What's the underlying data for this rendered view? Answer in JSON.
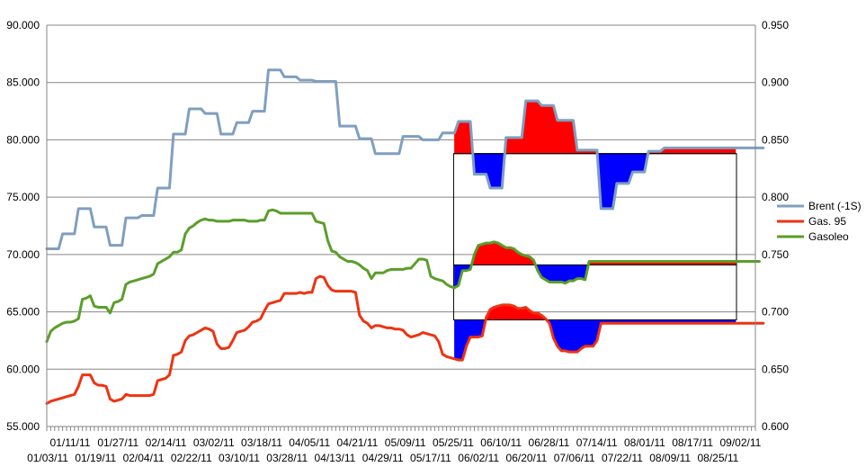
{
  "chart_data": {
    "type": "line",
    "title": "",
    "left_axis": {
      "ylim": [
        55.0,
        90.0
      ],
      "ticks": [
        "90.000",
        "85.000",
        "80.000",
        "75.000",
        "70.000",
        "65.000",
        "60.000",
        "55.000"
      ]
    },
    "right_axis": {
      "ylim": [
        0.6,
        0.95
      ],
      "ticks": [
        "0.950",
        "0.900",
        "0.850",
        "0.800",
        "0.750",
        "0.700",
        "0.650",
        "0.600"
      ]
    },
    "x_ticks_row1": [
      "01/11/11",
      "01/27/11",
      "02/14/11",
      "03/02/11",
      "03/18/11",
      "04/05/11",
      "04/21/11",
      "05/09/11",
      "05/25/11",
      "06/10/11",
      "06/28/11",
      "07/14/11",
      "08/01/11",
      "08/17/11",
      "09/02/11"
    ],
    "x_ticks_row2": [
      "01/03/11",
      "01/19/11",
      "02/04/11",
      "02/22/11",
      "03/10/11",
      "03/28/11",
      "04/13/11",
      "04/29/11",
      "05/17/11",
      "06/02/11",
      "06/20/11",
      "07/06/11",
      "07/22/11",
      "08/09/11",
      "08/25/11"
    ],
    "n_points": 180,
    "highlight_start_index": 103,
    "highlight_end_index": 174,
    "series": [
      {
        "name": "Brent (-1S)",
        "axis": "left",
        "color": "#7f9fbf",
        "values": [
          70.5,
          70.5,
          70.5,
          70.5,
          71.8,
          71.8,
          71.8,
          71.8,
          74.0,
          74.0,
          74.0,
          74.0,
          72.4,
          72.4,
          72.4,
          72.4,
          70.8,
          70.8,
          70.8,
          70.8,
          73.2,
          73.2,
          73.2,
          73.2,
          73.4,
          73.4,
          73.4,
          73.4,
          75.8,
          75.8,
          75.8,
          75.8,
          80.5,
          80.5,
          80.5,
          80.5,
          82.7,
          82.7,
          82.7,
          82.7,
          82.3,
          82.3,
          82.3,
          82.3,
          80.5,
          80.5,
          80.5,
          80.5,
          81.5,
          81.5,
          81.5,
          81.5,
          82.5,
          82.5,
          82.5,
          82.5,
          86.1,
          86.1,
          86.1,
          86.1,
          85.5,
          85.5,
          85.5,
          85.5,
          85.2,
          85.2,
          85.2,
          85.2,
          85.1,
          85.1,
          85.1,
          85.1,
          85.1,
          85.1,
          81.2,
          81.2,
          81.2,
          81.2,
          81.2,
          80.1,
          80.1,
          80.1,
          80.1,
          78.8,
          78.8,
          78.8,
          78.8,
          78.8,
          78.8,
          78.8,
          80.3,
          80.3,
          80.3,
          80.3,
          80.3,
          80.0,
          80.0,
          80.0,
          80.0,
          80.0,
          80.6,
          80.6,
          80.6,
          80.6,
          81.6,
          81.6,
          81.6,
          81.6,
          77.0,
          77.0,
          77.0,
          77.0,
          75.8,
          75.8,
          75.8,
          75.8,
          80.2,
          80.2,
          80.2,
          80.2,
          80.2,
          83.4,
          83.4,
          83.4,
          83.4,
          83.0,
          83.0,
          83.0,
          83.0,
          81.7,
          81.7,
          81.7,
          81.7,
          81.7,
          79.1,
          79.1,
          79.1,
          79.1,
          79.1,
          79.1,
          74.0,
          74.0,
          74.0,
          74.0,
          76.2,
          76.2,
          76.2,
          76.2,
          77.2,
          77.2,
          77.2,
          77.2,
          79.0,
          79.0,
          79.0,
          79.0,
          79.3,
          79.3,
          79.3,
          79.3,
          79.3,
          79.3,
          79.3,
          79.3,
          79.3,
          79.3,
          79.3,
          79.3,
          79.3,
          79.3,
          79.3,
          79.3,
          79.3,
          79.3,
          79.3,
          79.3,
          79.3,
          79.3,
          79.3,
          79.3,
          79.3,
          79.3
        ]
      },
      {
        "name": "Gas. 95",
        "axis": "left",
        "color": "#ee3311",
        "values": [
          57.0,
          57.2,
          57.3,
          57.4,
          57.5,
          57.6,
          57.7,
          57.8,
          58.5,
          59.5,
          59.5,
          59.5,
          58.8,
          58.6,
          58.6,
          58.5,
          57.4,
          57.2,
          57.3,
          57.4,
          57.8,
          57.7,
          57.7,
          57.7,
          57.7,
          57.7,
          57.7,
          57.8,
          59.0,
          59.1,
          59.2,
          59.5,
          61.2,
          61.3,
          61.5,
          62.5,
          62.9,
          63.0,
          63.2,
          63.4,
          63.6,
          63.5,
          63.3,
          62.2,
          61.8,
          61.8,
          61.9,
          62.5,
          63.2,
          63.3,
          63.4,
          63.7,
          64.1,
          64.2,
          64.4,
          65.1,
          65.7,
          65.8,
          65.9,
          66.0,
          66.6,
          66.6,
          66.6,
          66.6,
          66.7,
          66.6,
          66.7,
          66.7,
          67.9,
          68.1,
          68.0,
          67.3,
          66.9,
          66.8,
          66.8,
          66.8,
          66.8,
          66.8,
          66.7,
          64.7,
          64.2,
          64.0,
          63.6,
          63.8,
          63.8,
          63.7,
          63.6,
          63.6,
          63.5,
          63.5,
          63.4,
          63.0,
          62.8,
          62.9,
          63.0,
          63.2,
          63.1,
          63.0,
          62.9,
          62.4,
          61.3,
          61.1,
          61.0,
          60.9,
          60.8,
          60.8,
          62.0,
          62.8,
          62.8,
          62.8,
          62.9,
          64.5,
          65.2,
          65.4,
          65.5,
          65.6,
          65.6,
          65.6,
          65.5,
          65.3,
          65.3,
          65.4,
          65.1,
          64.9,
          64.9,
          64.7,
          64.4,
          64.0,
          62.7,
          62.0,
          61.6,
          61.6,
          61.5,
          61.5,
          61.5,
          61.8,
          62.0,
          62.0,
          62.0,
          62.5,
          64.0,
          64.0,
          64.0,
          64.0,
          64.0,
          64.0,
          64.0,
          64.0,
          64.0,
          64.0,
          64.0,
          64.0,
          64.0,
          64.0,
          64.0,
          64.0,
          64.0,
          64.0,
          64.0,
          64.0,
          64.0,
          64.0,
          64.0,
          64.0,
          64.0,
          64.0,
          64.0,
          64.0,
          64.0,
          64.0,
          64.0,
          64.0,
          64.0,
          64.0,
          64.0,
          64.0,
          64.0,
          64.0,
          64.0,
          64.0,
          64.0,
          64.0
        ]
      },
      {
        "name": "Gasoleo",
        "axis": "left",
        "color": "#5a9e2a",
        "values": [
          62.4,
          63.3,
          63.6,
          63.8,
          64.0,
          64.1,
          64.1,
          64.2,
          64.4,
          66.1,
          66.2,
          66.4,
          65.5,
          65.4,
          65.4,
          65.4,
          64.9,
          65.8,
          65.9,
          66.1,
          67.4,
          67.6,
          67.7,
          67.8,
          67.9,
          68.0,
          68.1,
          68.3,
          69.2,
          69.4,
          69.6,
          69.8,
          70.2,
          70.2,
          70.4,
          71.8,
          72.3,
          72.5,
          72.8,
          73.0,
          73.1,
          73.0,
          73.0,
          72.9,
          72.9,
          72.9,
          72.9,
          73.0,
          73.0,
          73.0,
          73.0,
          72.9,
          72.9,
          72.9,
          73.0,
          73.0,
          73.8,
          73.9,
          73.8,
          73.6,
          73.6,
          73.6,
          73.6,
          73.6,
          73.6,
          73.6,
          73.6,
          73.6,
          72.9,
          72.8,
          72.7,
          71.2,
          70.3,
          70.2,
          69.8,
          69.6,
          69.4,
          69.4,
          69.3,
          69.1,
          68.8,
          68.6,
          67.9,
          68.4,
          68.4,
          68.4,
          68.6,
          68.7,
          68.7,
          68.7,
          68.7,
          68.8,
          68.8,
          69.2,
          69.6,
          69.6,
          69.5,
          68.1,
          67.9,
          67.8,
          67.7,
          67.4,
          67.2,
          67.1,
          67.3,
          68.6,
          68.6,
          68.7,
          70.0,
          70.8,
          70.9,
          71.0,
          71.0,
          71.1,
          71.0,
          70.8,
          70.6,
          70.6,
          70.5,
          70.2,
          70.0,
          69.9,
          69.8,
          69.5,
          68.6,
          68.0,
          67.8,
          67.6,
          67.6,
          67.6,
          67.6,
          67.5,
          67.7,
          67.7,
          67.9,
          67.9,
          67.8,
          69.4,
          69.4,
          69.4,
          69.4,
          69.4,
          69.4,
          69.4,
          69.4,
          69.4,
          69.4,
          69.4,
          69.4,
          69.4,
          69.4,
          69.4,
          69.4,
          69.4,
          69.4,
          69.4,
          69.4,
          69.4,
          69.4,
          69.4,
          69.4,
          69.4,
          69.4,
          69.4,
          69.4,
          69.4,
          69.4,
          69.4,
          69.4,
          69.4,
          69.4,
          69.4,
          69.4,
          69.4,
          69.4,
          69.4,
          69.4,
          69.4,
          69.4,
          69.4,
          69.4
        ]
      }
    ],
    "fill_baselines": [
      {
        "series": "Brent (-1S)",
        "value": 78.8
      },
      {
        "series": "Gasoleo",
        "value": 69.1
      },
      {
        "series": "Gas. 95",
        "value": 64.3
      }
    ],
    "fill_colors": {
      "above": "#ff0000",
      "below": "#0000ff"
    },
    "grid": true,
    "legend_position": "right"
  }
}
